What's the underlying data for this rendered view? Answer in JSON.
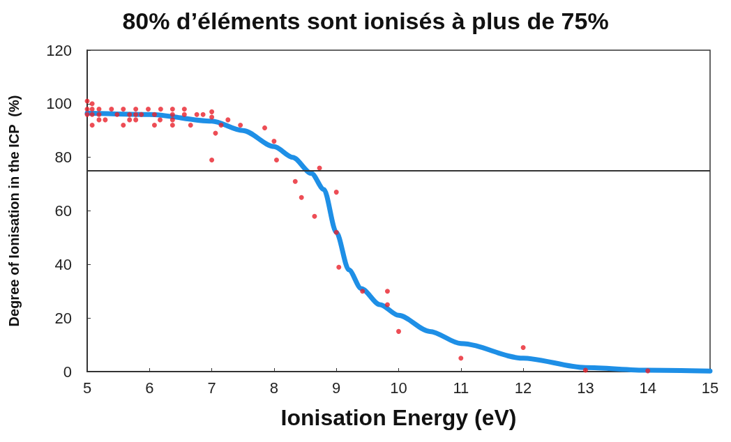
{
  "chart_data": {
    "type": "scatter",
    "title": "80% d’éléments sont ionisés à plus de 75%",
    "xlabel": "Ionisation Energy (eV)",
    "ylabel": "Degree of Ionisation in the ICP  (%)",
    "xlim": [
      5,
      15
    ],
    "xticks": [
      5,
      6,
      7,
      8,
      9,
      10,
      11,
      12,
      13,
      14,
      15
    ],
    "ylim": [
      0,
      120
    ],
    "yticks": [
      0,
      20,
      40,
      60,
      80,
      100,
      120
    ],
    "grid": false,
    "marker": "circle",
    "ref_lines": [
      {
        "axis": "y",
        "value": 75,
        "label": null,
        "color": "#333333"
      }
    ],
    "series": [
      {
        "color": "#e8202a",
        "x": [
          5.0,
          5.08,
          5.0,
          5.08,
          5.19,
          5.39,
          5.58,
          5.78,
          5.98,
          6.18,
          6.37,
          6.56,
          5.0,
          5.08,
          5.19,
          5.48,
          5.68,
          5.78,
          5.87,
          6.08,
          6.37,
          6.56,
          6.76,
          6.86,
          7.0,
          5.19,
          5.29,
          5.68,
          5.78,
          6.17,
          6.37,
          7.0,
          7.26,
          5.08,
          5.58,
          6.08,
          6.37,
          6.66,
          7.15,
          7.46,
          7.06,
          7.85,
          8.0,
          7.0,
          8.04,
          8.73,
          8.34,
          8.44,
          9.0,
          8.65,
          9.0,
          9.04,
          9.42,
          9.82,
          9.82,
          10.0,
          11.0,
          12.0,
          13.0,
          14.0
        ],
        "values": [
          101,
          100,
          98,
          98,
          98,
          98,
          98,
          98,
          98,
          98,
          98,
          98,
          96,
          96,
          96,
          96,
          96,
          96,
          96,
          96,
          96,
          96,
          96,
          96,
          97,
          94,
          94,
          94,
          94,
          94,
          94,
          95,
          94,
          92,
          92,
          92,
          92,
          92,
          92,
          92,
          89,
          91,
          86,
          79,
          79,
          76,
          71,
          65,
          67,
          58,
          52,
          39,
          30,
          30,
          25,
          15,
          5,
          9,
          0.5,
          0.3
        ]
      },
      {
        "type": "line",
        "color": "#1e8fe6",
        "marker": "none",
        "line_style": "solid",
        "x": [
          5,
          6,
          7,
          7.5,
          8,
          8.3,
          8.6,
          8.8,
          9,
          9.2,
          9.4,
          9.7,
          10,
          10.5,
          11,
          12,
          13,
          14,
          15
        ],
        "values": [
          96.5,
          96,
          93.5,
          90,
          84,
          80,
          74,
          68,
          52,
          38,
          31,
          25,
          21,
          15,
          10.5,
          5,
          1.5,
          0.5,
          0.2
        ]
      }
    ]
  }
}
